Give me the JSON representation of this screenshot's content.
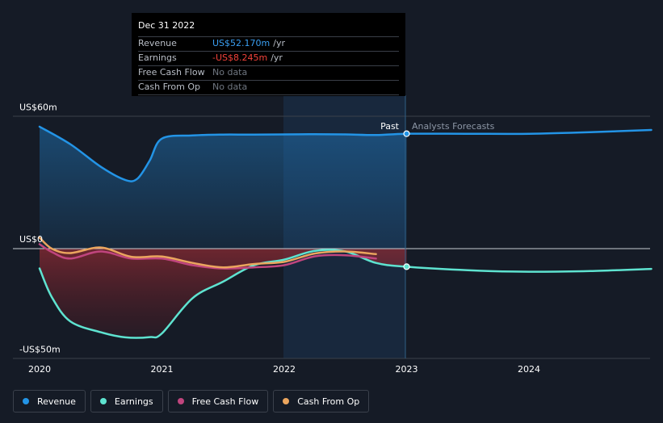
{
  "tooltip": {
    "date": "Dec 31 2022",
    "rows": [
      {
        "name": "Revenue",
        "value": "US$52.170m",
        "unit": "/yr"
      },
      {
        "name": "Earnings",
        "value": "-US$8.245m",
        "unit": "/yr"
      },
      {
        "name": "Free Cash Flow",
        "value": "No data",
        "unit": ""
      },
      {
        "name": "Cash From Op",
        "value": "No data",
        "unit": ""
      }
    ]
  },
  "labels": {
    "past": "Past",
    "forecast": "Analysts Forecasts"
  },
  "colors": {
    "background": "#151b26",
    "revenue": "#2394e6",
    "earnings": "#5ee3d0",
    "free_cash_flow": "#c0457e",
    "cash_from_op": "#eba55e"
  },
  "legend": [
    {
      "name": "Revenue",
      "color": "#2394e6"
    },
    {
      "name": "Earnings",
      "color": "#5ee3d0"
    },
    {
      "name": "Free Cash Flow",
      "color": "#c0457e"
    },
    {
      "name": "Cash From Op",
      "color": "#eba55e"
    }
  ],
  "chart_data": {
    "type": "line",
    "y_tick_labels": [
      "US$60m",
      "US$0",
      "-US$50m"
    ],
    "x_tick_labels": [
      "2020",
      "2021",
      "2022",
      "2023",
      "2024"
    ],
    "ylim": [
      -50,
      60
    ],
    "xlim": [
      2020,
      2025
    ],
    "past_forecast_split": 2023.0,
    "highlight_x": 2023.0,
    "grid": false,
    "legend_position": "bottom-left",
    "series": [
      {
        "name": "Revenue",
        "x": [
          2020.0,
          2020.25,
          2020.5,
          2020.7,
          2020.8,
          2020.9,
          2021.0,
          2021.25,
          2021.5,
          2021.75,
          2022.0,
          2022.25,
          2022.5,
          2022.75,
          2023.0,
          2023.5,
          2024.0,
          2024.5,
          2025.0
        ],
        "y": [
          55.4,
          47.5,
          37.2,
          31.2,
          31.8,
          40.0,
          50.0,
          51.4,
          51.8,
          51.8,
          51.9,
          52.0,
          51.9,
          51.6,
          52.2,
          52.2,
          52.2,
          52.9,
          53.9
        ]
      },
      {
        "name": "Earnings",
        "x": [
          2020.0,
          2020.1,
          2020.25,
          2020.5,
          2020.7,
          2020.9,
          2021.0,
          2021.25,
          2021.5,
          2021.75,
          2022.0,
          2022.25,
          2022.5,
          2022.75,
          2023.0,
          2023.5,
          2024.0,
          2024.5,
          2025.0
        ],
        "y": [
          -9.0,
          -22.0,
          -33.0,
          -38.0,
          -40.3,
          -40.2,
          -38.5,
          -22.5,
          -15.0,
          -7.6,
          -5.0,
          -1.0,
          -1.3,
          -6.5,
          -8.2,
          -9.8,
          -10.5,
          -10.2,
          -9.2
        ]
      },
      {
        "name": "Free Cash Flow",
        "x": [
          2020.0,
          2020.1,
          2020.25,
          2020.5,
          2020.75,
          2021.0,
          2021.25,
          2021.5,
          2021.75,
          2022.0,
          2022.25,
          2022.5,
          2022.75
        ],
        "y": [
          2.0,
          -1.5,
          -4.5,
          -1.3,
          -4.5,
          -4.5,
          -7.5,
          -9.0,
          -8.5,
          -7.5,
          -3.5,
          -3.0,
          -4.5
        ]
      },
      {
        "name": "Cash From Op",
        "x": [
          2020.0,
          2020.1,
          2020.25,
          2020.5,
          2020.75,
          2021.0,
          2021.25,
          2021.5,
          2021.75,
          2022.0,
          2022.25,
          2022.5,
          2022.75
        ],
        "y": [
          5.0,
          0.0,
          -2.0,
          0.5,
          -3.7,
          -3.6,
          -6.5,
          -8.5,
          -7.0,
          -6.0,
          -2.2,
          -1.3,
          -2.5
        ]
      }
    ]
  }
}
